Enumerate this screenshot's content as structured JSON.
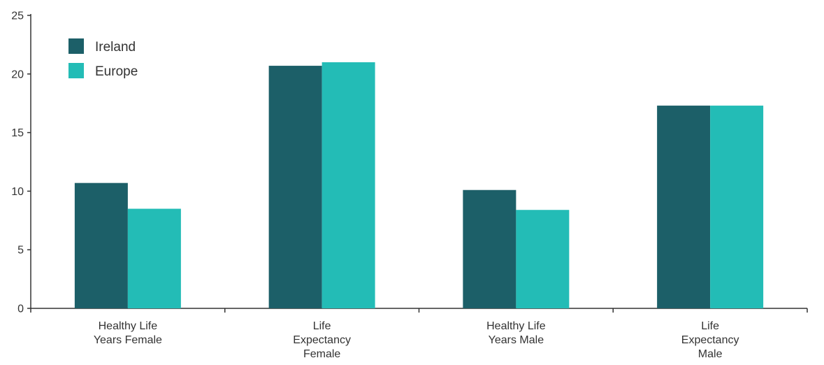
{
  "chart_data": {
    "type": "bar",
    "title": "",
    "xlabel": "",
    "ylabel": "",
    "ylim": [
      0,
      25
    ],
    "yticks": [
      0,
      5,
      10,
      15,
      20,
      25
    ],
    "grid": false,
    "legend_position": "top-left",
    "categories": [
      [
        "Healthy Life",
        "Years Female"
      ],
      [
        "Life",
        "Expectancy",
        "Female"
      ],
      [
        "Healthy Life",
        "Years Male"
      ],
      [
        "Life",
        "Expectancy",
        "Male"
      ]
    ],
    "series": [
      {
        "name": "Ireland",
        "color": "#1c5f68",
        "values": [
          10.7,
          20.7,
          10.1,
          17.3
        ]
      },
      {
        "name": "Europe",
        "color": "#23bcb6",
        "values": [
          8.5,
          21.0,
          8.4,
          17.3
        ]
      }
    ]
  }
}
